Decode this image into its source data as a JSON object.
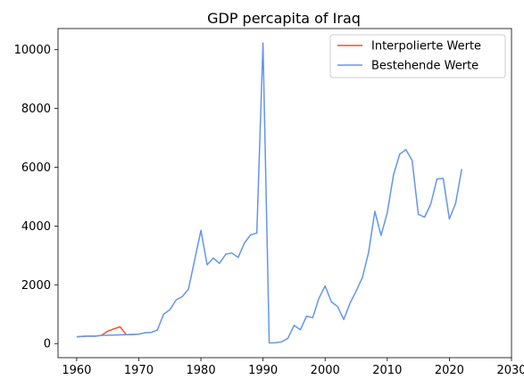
{
  "chart_data": {
    "type": "line",
    "title": "GDP percapita of Iraq",
    "xlabel": "",
    "ylabel": "",
    "xlim": [
      1957,
      2030
    ],
    "ylim": [
      -480,
      10720
    ],
    "x_ticks": [
      1960,
      1970,
      1980,
      1990,
      2000,
      2010,
      2020,
      2030
    ],
    "y_ticks": [
      0,
      2000,
      4000,
      6000,
      8000,
      10000
    ],
    "grid": false,
    "legend_position": "upper right",
    "series": [
      {
        "name": "Interpolierte Werte",
        "color": "#f4511e",
        "x": [
          1960,
          1961,
          1962,
          1963,
          1964,
          1965,
          1966,
          1967,
          1968,
          1969,
          1970
        ],
        "y": [
          230,
          245,
          255,
          250,
          280,
          420,
          500,
          570,
          300,
          310,
          320
        ]
      },
      {
        "name": "Bestehende Werte",
        "color": "#6495ed",
        "x": [
          1960,
          1961,
          1962,
          1963,
          1964,
          1968,
          1969,
          1970,
          1971,
          1972,
          1973,
          1974,
          1975,
          1976,
          1977,
          1978,
          1979,
          1980,
          1981,
          1982,
          1983,
          1984,
          1985,
          1986,
          1987,
          1988,
          1989,
          1990,
          1991,
          1992,
          1993,
          1994,
          1995,
          1996,
          1997,
          1998,
          1999,
          2000,
          2001,
          2002,
          2003,
          2004,
          2005,
          2006,
          2007,
          2008,
          2009,
          2010,
          2011,
          2012,
          2013,
          2014,
          2015,
          2016,
          2017,
          2018,
          2019,
          2020,
          2021,
          2022
        ],
        "y": [
          230,
          245,
          255,
          250,
          280,
          300,
          310,
          320,
          370,
          380,
          460,
          1000,
          1150,
          1480,
          1600,
          1850,
          2850,
          3850,
          2680,
          2910,
          2730,
          3040,
          3080,
          2930,
          3420,
          3700,
          3760,
          10230,
          20,
          30,
          60,
          180,
          620,
          470,
          930,
          880,
          1540,
          1960,
          1420,
          1260,
          820,
          1370,
          1790,
          2250,
          3100,
          4500,
          3680,
          4450,
          5740,
          6440,
          6600,
          6230,
          4400,
          4300,
          4740,
          5600,
          5620,
          4240,
          4770,
          5940
        ]
      }
    ]
  }
}
